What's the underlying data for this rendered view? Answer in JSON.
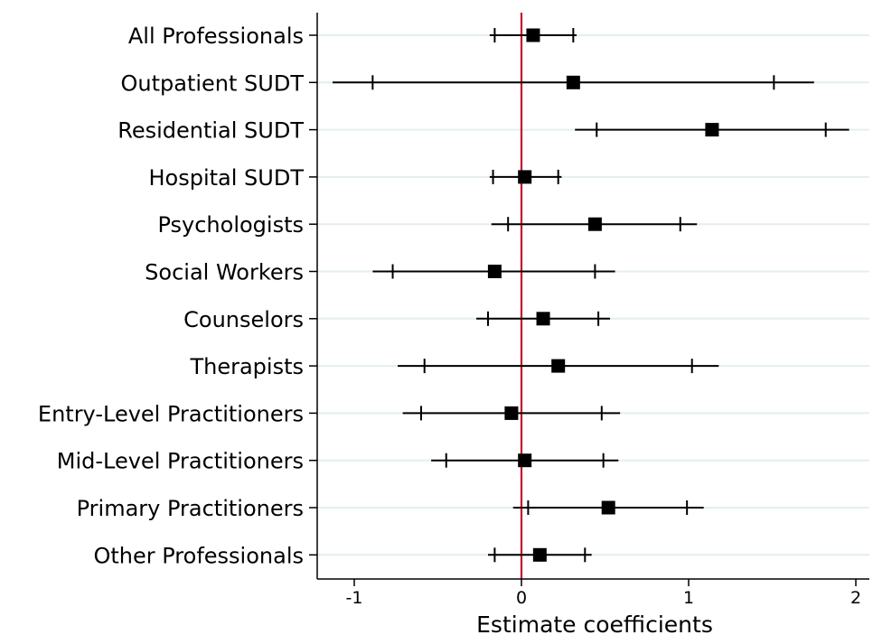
{
  "chart_data": {
    "type": "coefficient_plot",
    "title": "",
    "xlabel": "Estimate coefficients",
    "ylabel": "",
    "xlim": [
      -1.22,
      2.1
    ],
    "xticks": [
      -1,
      0,
      1,
      2
    ],
    "xtick_labels": [
      "-1",
      "0",
      "1",
      "2"
    ],
    "reference_line": 0,
    "grid": "horizontal",
    "categories": [
      "All Professionals",
      "Outpatient SUDT",
      "Residential SUDT",
      "Hospital SUDT",
      "Psychologists",
      "Social Workers",
      "Counselors",
      "Therapists",
      "Entry-Level Practitioners",
      "Mid-Level Practitioners",
      "Primary Practitioners",
      "Other Professionals"
    ],
    "estimates": [
      0.07,
      0.31,
      1.14,
      0.02,
      0.44,
      -0.16,
      0.13,
      0.22,
      -0.06,
      0.02,
      0.52,
      0.11
    ],
    "ci_inner": [
      [
        -0.16,
        0.31
      ],
      [
        -0.89,
        1.51
      ],
      [
        0.45,
        1.82
      ],
      [
        -0.17,
        0.22
      ],
      [
        -0.08,
        0.95
      ],
      [
        -0.77,
        0.44
      ],
      [
        -0.2,
        0.46
      ],
      [
        -0.58,
        1.02
      ],
      [
        -0.6,
        0.48
      ],
      [
        -0.45,
        0.49
      ],
      [
        0.04,
        0.99
      ],
      [
        -0.16,
        0.38
      ]
    ],
    "ci_outer": [
      [
        -0.19,
        0.33
      ],
      [
        -1.13,
        1.75
      ],
      [
        0.32,
        1.96
      ],
      [
        -0.19,
        0.24
      ],
      [
        -0.18,
        1.05
      ],
      [
        -0.89,
        0.56
      ],
      [
        -0.27,
        0.53
      ],
      [
        -0.74,
        1.18
      ],
      [
        -0.71,
        0.59
      ],
      [
        -0.54,
        0.58
      ],
      [
        -0.05,
        1.09
      ],
      [
        -0.2,
        0.42
      ]
    ],
    "colors": {
      "reference_line": "#c8102e",
      "grid": "#e4eef0",
      "marker": "#000000"
    }
  }
}
